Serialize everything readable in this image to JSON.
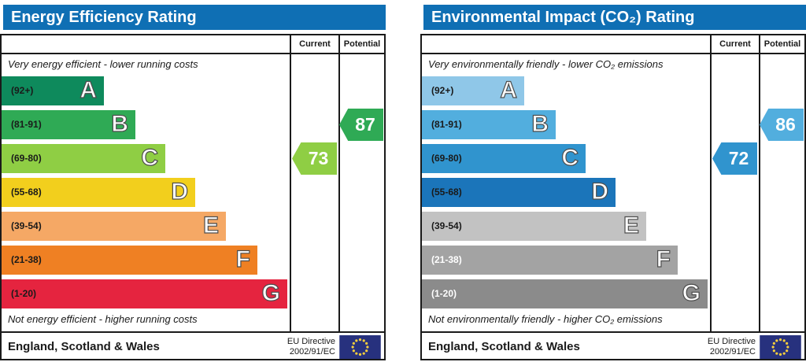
{
  "colors": {
    "title_bar": "#0f6fb4",
    "border": "#1a1a1a",
    "eu_flag_bg": "#27317e",
    "eu_flag_stars": "#f7cf3d"
  },
  "panels": [
    {
      "title": "Energy Efficiency Rating",
      "columns": {
        "current": "Current",
        "potential": "Potential"
      },
      "top_note": "Very energy efficient - lower running costs",
      "bottom_note": "Not energy efficient - higher running costs",
      "bands": [
        {
          "range": "(92+)",
          "letter": "A",
          "color": "#0e8a5c",
          "label_color": "#1a1a1a"
        },
        {
          "range": "(81-91)",
          "letter": "B",
          "color": "#2faa55",
          "label_color": "#1a1a1a"
        },
        {
          "range": "(69-80)",
          "letter": "C",
          "color": "#8fce44",
          "label_color": "#1a1a1a"
        },
        {
          "range": "(55-68)",
          "letter": "D",
          "color": "#f2cf1d",
          "label_color": "#1a1a1a"
        },
        {
          "range": "(39-54)",
          "letter": "E",
          "color": "#f5a865",
          "label_color": "#1a1a1a"
        },
        {
          "range": "(21-38)",
          "letter": "F",
          "color": "#ef8023",
          "label_color": "#1a1a1a"
        },
        {
          "range": "(1-20)",
          "letter": "G",
          "color": "#e5243f",
          "label_color": "#1a1a1a"
        }
      ],
      "current": {
        "value": "73",
        "color": "#8fce44",
        "band_index": 2
      },
      "potential": {
        "value": "87",
        "color": "#2faa55",
        "band_index": 1
      },
      "footer": {
        "region": "England, Scotland & Wales",
        "directive_line1": "EU Directive",
        "directive_line2": "2002/91/EC"
      }
    },
    {
      "title": "Environmental Impact (CO₂) Rating",
      "columns": {
        "current": "Current",
        "potential": "Potential"
      },
      "top_note": "Very environmentally friendly - lower CO₂ emissions",
      "bottom_note": "Not environmentally friendly - higher CO₂ emissions",
      "bands": [
        {
          "range": "(92+)",
          "letter": "A",
          "color": "#8fc7e8",
          "label_color": "#1a1a1a"
        },
        {
          "range": "(81-91)",
          "letter": "B",
          "color": "#52aede",
          "label_color": "#1a1a1a"
        },
        {
          "range": "(69-80)",
          "letter": "C",
          "color": "#3094ce",
          "label_color": "#1a1a1a"
        },
        {
          "range": "(55-68)",
          "letter": "D",
          "color": "#1b75ba",
          "label_color": "#1a1a1a"
        },
        {
          "range": "(39-54)",
          "letter": "E",
          "color": "#c2c2c2",
          "label_color": "#1a1a1a"
        },
        {
          "range": "(21-38)",
          "letter": "F",
          "color": "#a3a3a3",
          "label_color": "#ffffff"
        },
        {
          "range": "(1-20)",
          "letter": "G",
          "color": "#8b8b8b",
          "label_color": "#ffffff"
        }
      ],
      "current": {
        "value": "72",
        "color": "#3094ce",
        "band_index": 2
      },
      "potential": {
        "value": "86",
        "color": "#52aede",
        "band_index": 1
      },
      "footer": {
        "region": "England, Scotland & Wales",
        "directive_line1": "EU Directive",
        "directive_line2": "2002/91/EC"
      }
    }
  ],
  "chart_data": [
    {
      "type": "bar",
      "title": "Energy Efficiency Rating",
      "categories": [
        "A (92+)",
        "B (81-91)",
        "C (69-80)",
        "D (55-68)",
        "E (39-54)",
        "F (21-38)",
        "G (1-20)"
      ],
      "band_colors": [
        "#0e8a5c",
        "#2faa55",
        "#8fce44",
        "#f2cf1d",
        "#f5a865",
        "#ef8023",
        "#e5243f"
      ],
      "series": [
        {
          "name": "Current",
          "values": [
            73
          ],
          "band": "C"
        },
        {
          "name": "Potential",
          "values": [
            87
          ],
          "band": "B"
        }
      ],
      "annotations": [
        "Very energy efficient - lower running costs",
        "Not energy efficient - higher running costs"
      ],
      "footer": "England, Scotland & Wales — EU Directive 2002/91/EC",
      "xlabel": "",
      "ylabel": "",
      "value_range": [
        1,
        100
      ],
      "grid": false,
      "legend_position": "table-header"
    },
    {
      "type": "bar",
      "title": "Environmental Impact (CO₂) Rating",
      "categories": [
        "A (92+)",
        "B (81-91)",
        "C (69-80)",
        "D (55-68)",
        "E (39-54)",
        "F (21-38)",
        "G (1-20)"
      ],
      "band_colors": [
        "#8fc7e8",
        "#52aede",
        "#3094ce",
        "#1b75ba",
        "#c2c2c2",
        "#a3a3a3",
        "#8b8b8b"
      ],
      "series": [
        {
          "name": "Current",
          "values": [
            72
          ],
          "band": "C"
        },
        {
          "name": "Potential",
          "values": [
            86
          ],
          "band": "B"
        }
      ],
      "annotations": [
        "Very environmentally friendly - lower CO₂ emissions",
        "Not environmentally friendly - higher CO₂ emissions"
      ],
      "footer": "England, Scotland & Wales — EU Directive 2002/91/EC",
      "xlabel": "",
      "ylabel": "",
      "value_range": [
        1,
        100
      ],
      "grid": false,
      "legend_position": "table-header"
    }
  ]
}
